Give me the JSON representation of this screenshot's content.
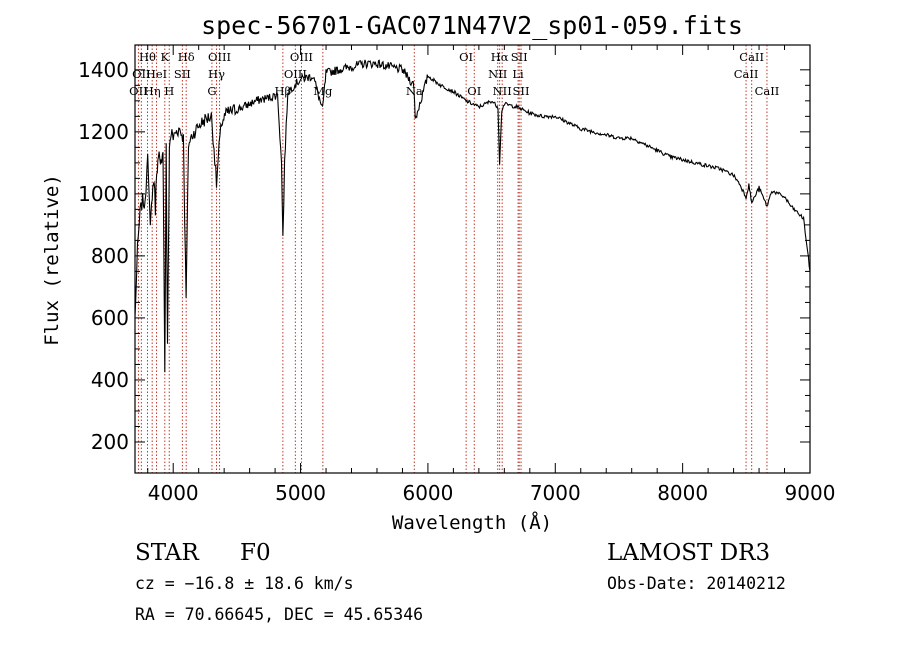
{
  "chart_data": {
    "type": "line",
    "title": "spec-56701-GAC071N47V2_sp01-059.fits",
    "xlabel": "Wavelength (Å)",
    "ylabel": "Flux (relative)",
    "xlim": [
      3700,
      9000
    ],
    "ylim": [
      100,
      1480
    ],
    "x_ticks": [
      4000,
      5000,
      6000,
      7000,
      8000,
      9000
    ],
    "y_ticks": [
      200,
      400,
      600,
      800,
      1000,
      1200,
      1400
    ],
    "series": [
      {
        "name": "spectrum",
        "x": [
          3700,
          3720,
          3740,
          3760,
          3780,
          3800,
          3820,
          3835,
          3850,
          3860,
          3870,
          3880,
          3889,
          3900,
          3910,
          3920,
          3934,
          3945,
          3955,
          3970,
          3985,
          4000,
          4020,
          4050,
          4080,
          4101,
          4120,
          4150,
          4200,
          4250,
          4300,
          4320,
          4340,
          4360,
          4380,
          4420,
          4480,
          4550,
          4650,
          4750,
          4820,
          4850,
          4861,
          4875,
          4900,
          4950,
          5000,
          5100,
          5172,
          5200,
          5300,
          5400,
          5500,
          5600,
          5700,
          5800,
          5890,
          5900,
          6000,
          6100,
          6200,
          6300,
          6400,
          6500,
          6550,
          6563,
          6580,
          6600,
          6700,
          6800,
          6900,
          7000,
          7100,
          7200,
          7300,
          7400,
          7500,
          7600,
          7700,
          7800,
          7900,
          8000,
          8100,
          8200,
          8300,
          8400,
          8450,
          8498,
          8520,
          8542,
          8600,
          8662,
          8700,
          8750,
          8800,
          8850,
          8900,
          8950,
          9000
        ],
        "flux": [
          600,
          820,
          940,
          980,
          960,
          1150,
          880,
          1000,
          1050,
          950,
          1080,
          1100,
          1120,
          1080,
          1120,
          1150,
          430,
          1150,
          500,
          1150,
          1200,
          1180,
          1200,
          1210,
          1180,
          660,
          1160,
          1190,
          1220,
          1240,
          1250,
          1150,
          1030,
          1150,
          1230,
          1260,
          1270,
          1280,
          1300,
          1310,
          1320,
          1100,
          860,
          1100,
          1330,
          1350,
          1370,
          1380,
          1270,
          1390,
          1400,
          1410,
          1420,
          1420,
          1410,
          1400,
          1350,
          1240,
          1380,
          1350,
          1330,
          1300,
          1280,
          1300,
          1280,
          1100,
          1270,
          1290,
          1280,
          1260,
          1250,
          1250,
          1230,
          1210,
          1200,
          1190,
          1180,
          1180,
          1160,
          1140,
          1120,
          1110,
          1100,
          1090,
          1080,
          1060,
          1030,
          990,
          1030,
          970,
          1020,
          960,
          1010,
          1000,
          990,
          960,
          940,
          920,
          750
        ]
      }
    ],
    "emission_lines": [
      {
        "wavelength": 3727,
        "label": "OII",
        "row": 3
      },
      {
        "wavelength": 3750,
        "label": "OII",
        "row": 2
      },
      {
        "wavelength": 3798,
        "label": "Hθ",
        "row": 1
      },
      {
        "wavelength": 3835,
        "label": "Hη",
        "row": 3
      },
      {
        "wavelength": 3869,
        "label": "HeI",
        "row": 2
      },
      {
        "wavelength": 3934,
        "label": "K",
        "row": 1
      },
      {
        "wavelength": 3969,
        "label": "H",
        "row": 3
      },
      {
        "wavelength": 4072,
        "label": "SII",
        "row": 2
      },
      {
        "wavelength": 4102,
        "label": "Hδ",
        "row": 1
      },
      {
        "wavelength": 4304,
        "label": "G",
        "row": 3
      },
      {
        "wavelength": 4340,
        "label": "Hγ",
        "row": 2
      },
      {
        "wavelength": 4364,
        "label": "OIII",
        "row": 1
      },
      {
        "wavelength": 4861,
        "label": "Hβ",
        "row": 3
      },
      {
        "wavelength": 4959,
        "label": "OIII",
        "row": 2
      },
      {
        "wavelength": 5007,
        "label": "OIII",
        "row": 1
      },
      {
        "wavelength": 5175,
        "label": "Mg",
        "row": 3
      },
      {
        "wavelength": 5893,
        "label": "Na",
        "row": 3
      },
      {
        "wavelength": 6300,
        "label": "OI",
        "row": 1
      },
      {
        "wavelength": 6364,
        "label": "OI",
        "row": 3
      },
      {
        "wavelength": 6548,
        "label": "NII",
        "row": 2
      },
      {
        "wavelength": 6563,
        "label": "Hα",
        "row": 1
      },
      {
        "wavelength": 6583,
        "label": "NII",
        "row": 3
      },
      {
        "wavelength": 6708,
        "label": "Li",
        "row": 2
      },
      {
        "wavelength": 6717,
        "label": "SII",
        "row": 1
      },
      {
        "wavelength": 6731,
        "label": "SII",
        "row": 3
      },
      {
        "wavelength": 8498,
        "label": "CaII",
        "row": 2
      },
      {
        "wavelength": 8542,
        "label": "CaII",
        "row": 1
      },
      {
        "wavelength": 8662,
        "label": "CaII",
        "row": 3
      }
    ]
  },
  "info": {
    "object_class": "STAR",
    "subclass": "F0",
    "survey": "LAMOST DR3",
    "redshift": "cz = −16.8 ± 18.6 km/s",
    "obs_date": "Obs-Date: 20140212",
    "coordinates": "RA =  70.66645, DEC =  45.65346"
  },
  "colors": {
    "line_marker": "#c0392b",
    "spectrum": "#000000",
    "axes": "#000000"
  }
}
